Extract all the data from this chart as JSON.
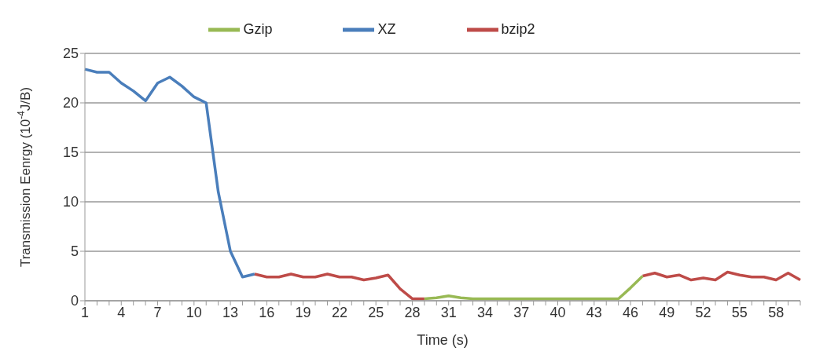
{
  "chart_data": {
    "type": "line",
    "xlabel": "Time (s)",
    "ylabel": "Transmission Eenrgy (10$^{-4}$J/B)",
    "categories": [
      "1",
      null,
      null,
      "4",
      null,
      null,
      "7",
      null,
      null,
      "10",
      null,
      null,
      "13",
      null,
      null,
      "16",
      null,
      null,
      "19",
      null,
      null,
      "22",
      null,
      null,
      "25",
      null,
      null,
      "28",
      null,
      null,
      "31",
      null,
      null,
      "34",
      null,
      null,
      "37",
      null,
      null,
      "40",
      null,
      null,
      "43",
      null,
      null,
      "46",
      null,
      null,
      "49",
      null,
      null,
      "52",
      null,
      null,
      "55",
      null,
      null,
      "58",
      null,
      null
    ],
    "series": [
      {
        "name": "XZ",
        "color": "#4a7ebb",
        "values": [
          23.4,
          23.1,
          23.1,
          22.0,
          21.2,
          20.2,
          22.0,
          22.6,
          21.7,
          20.6,
          20.0,
          11.0,
          5.0,
          2.4,
          2.7,
          null,
          null,
          null,
          null,
          null,
          null,
          null,
          null,
          null,
          null,
          null,
          null,
          null,
          null,
          null,
          null,
          null,
          null,
          null,
          null,
          null,
          null,
          null,
          null,
          null,
          null,
          null,
          null,
          null,
          null,
          null,
          null,
          null,
          null,
          null,
          null,
          null,
          null,
          null,
          null,
          null,
          null,
          null,
          null,
          null
        ]
      },
      {
        "name": "bzip2",
        "color": "#be4b48",
        "values": [
          null,
          null,
          null,
          null,
          null,
          null,
          null,
          null,
          null,
          null,
          null,
          null,
          null,
          null,
          2.7,
          2.4,
          2.4,
          2.7,
          2.4,
          2.4,
          2.7,
          2.4,
          2.4,
          2.1,
          2.3,
          2.6,
          1.2,
          0.2,
          0.2,
          null,
          null,
          null,
          null,
          null,
          null,
          null,
          null,
          null,
          null,
          null,
          null,
          null,
          null,
          null,
          null,
          null,
          2.5,
          2.8,
          2.4,
          2.6,
          2.1,
          2.3,
          2.1,
          2.9,
          2.6,
          2.4,
          2.4,
          2.1,
          2.8,
          2.1
        ]
      },
      {
        "name": "Gzip",
        "color": "#98b954",
        "values": [
          null,
          null,
          null,
          null,
          null,
          null,
          null,
          null,
          null,
          null,
          null,
          null,
          null,
          null,
          null,
          null,
          null,
          null,
          null,
          null,
          null,
          null,
          null,
          null,
          null,
          null,
          null,
          null,
          0.2,
          0.3,
          0.5,
          0.3,
          0.2,
          0.2,
          0.2,
          0.2,
          0.2,
          0.2,
          0.2,
          0.2,
          0.2,
          0.2,
          0.2,
          0.2,
          0.2,
          1.3,
          2.5,
          null,
          null,
          null,
          null,
          null,
          null,
          null,
          null,
          null,
          null,
          null,
          null,
          null
        ]
      }
    ],
    "ylim": [
      0,
      25
    ],
    "yticks": [
      0,
      5,
      10,
      15,
      20,
      25
    ],
    "grid": "y",
    "legend": "top",
    "marker": "none",
    "line_style": "solid"
  }
}
